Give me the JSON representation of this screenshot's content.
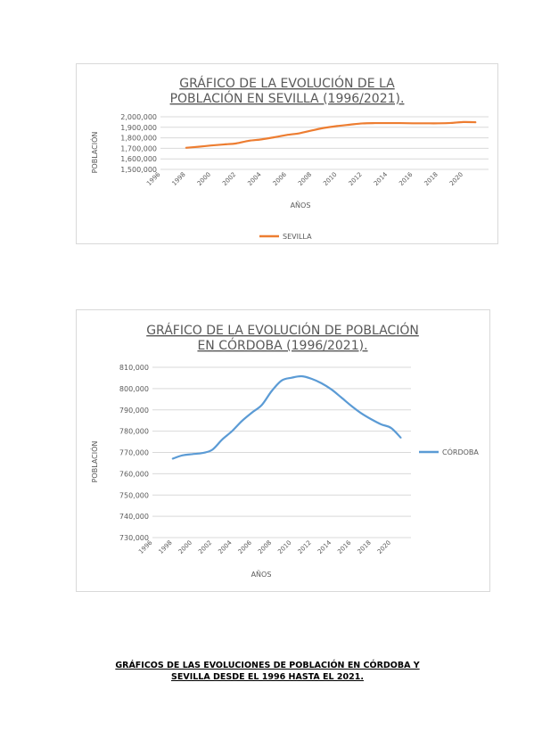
{
  "chart_data": [
    {
      "type": "line",
      "title_lines": [
        "GRÁFICO DE LA EVOLUCIÓN DE LA",
        "POBLACIÓN EN SEVILLA (1996/2021)."
      ],
      "xlabel": "AÑOS",
      "ylabel": "POBLACIÓN",
      "x_ticks": [
        "1996",
        "1998",
        "2000",
        "2002",
        "2004",
        "2006",
        "2008",
        "2010",
        "2012",
        "2014",
        "2016",
        "2018",
        "2020"
      ],
      "x": [
        1998,
        1999,
        2000,
        2001,
        2002,
        2003,
        2004,
        2005,
        2006,
        2007,
        2008,
        2009,
        2010,
        2011,
        2012,
        2013,
        2014,
        2015,
        2016,
        2017,
        2018,
        2019,
        2020,
        2021
      ],
      "y_ticks": [
        "1,500,000",
        "1,600,000",
        "1,700,000",
        "1,800,000",
        "1,900,000",
        "2,000,000"
      ],
      "ylim": [
        1500000,
        2000000
      ],
      "legend_position": "bottom",
      "grid": true,
      "series": [
        {
          "name": "SEVILLA",
          "color": "#ed7d31",
          "values": [
            1705000,
            1715000,
            1727000,
            1737000,
            1747000,
            1772000,
            1785000,
            1805000,
            1827000,
            1843000,
            1870000,
            1895000,
            1912000,
            1925000,
            1937000,
            1940000,
            1940000,
            1940000,
            1938000,
            1938000,
            1938000,
            1941000,
            1950000,
            1948000
          ]
        }
      ]
    },
    {
      "type": "line",
      "title_lines": [
        "GRÁFICO DE LA EVOLUCIÓN DE POBLACIÓN",
        "EN CÓRDOBA (1996/2021)."
      ],
      "xlabel": "AÑOS",
      "ylabel": "POBLACIÓN",
      "x_ticks": [
        "1996",
        "1998",
        "2000",
        "2002",
        "2004",
        "2006",
        "2008",
        "2010",
        "2012",
        "2014",
        "2016",
        "2018",
        "2020"
      ],
      "x": [
        1998,
        1999,
        2000,
        2001,
        2002,
        2003,
        2004,
        2005,
        2006,
        2007,
        2008,
        2009,
        2010,
        2011,
        2012,
        2013,
        2014,
        2015,
        2016,
        2017,
        2018,
        2019,
        2020,
        2021
      ],
      "y_ticks": [
        "730,000",
        "740,000",
        "750,000",
        "760,000",
        "770,000",
        "780,000",
        "790,000",
        "800,000",
        "810,000"
      ],
      "ylim": [
        730000,
        810000
      ],
      "legend_position": "right",
      "grid": true,
      "series": [
        {
          "name": "CÓRDOBA",
          "color": "#5b9bd5",
          "values": [
            767000,
            768600,
            769200,
            769700,
            771200,
            776000,
            780000,
            784800,
            788700,
            792300,
            798900,
            803800,
            805100,
            805800,
            804600,
            802500,
            799600,
            795800,
            791900,
            788400,
            785600,
            783200,
            781500,
            776800
          ]
        }
      ]
    }
  ],
  "caption_lines": [
    "GRÁFICOS DE LAS EVOLUCIONES DE POBLACIÓN EN CÓRDOBA Y",
    "SEVILLA DESDE EL 1996 HASTA EL 2021."
  ]
}
